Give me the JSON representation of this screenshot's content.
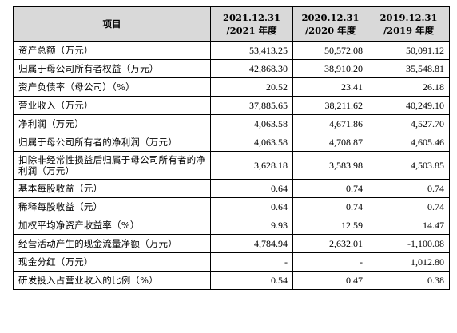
{
  "header": {
    "item": "项目",
    "col1_line1": "2021.12.31",
    "col1_line2": "/2021 年度",
    "col2_line1": "2020.12.31",
    "col2_line2": "/2020 年度",
    "col3_line1": "2019.12.31",
    "col3_line2": "/2019 年度"
  },
  "rows": [
    {
      "label": "资产总额（万元）",
      "v2021": "53,413.25",
      "v2020": "50,572.08",
      "v2019": "50,091.12"
    },
    {
      "label": "归属于母公司所有者权益（万元）",
      "v2021": "42,868.30",
      "v2020": "38,910.20",
      "v2019": "35,548.81"
    },
    {
      "label": "资产负债率（母公司）（%）",
      "v2021": "20.52",
      "v2020": "23.41",
      "v2019": "26.18"
    },
    {
      "label": "营业收入（万元）",
      "v2021": "37,885.65",
      "v2020": "38,211.62",
      "v2019": "40,249.10"
    },
    {
      "label": "净利润（万元）",
      "v2021": "4,063.58",
      "v2020": "4,671.86",
      "v2019": "4,527.70"
    },
    {
      "label": "归属于母公司所有者的净利润（万元）",
      "v2021": "4,063.58",
      "v2020": "4,708.87",
      "v2019": "4,605.46"
    },
    {
      "label": "扣除非经常性损益后归属于母公司所有者的净利润（万元）",
      "v2021": "3,628.18",
      "v2020": "3,583.98",
      "v2019": "4,503.85"
    },
    {
      "label": "基本每股收益（元）",
      "v2021": "0.64",
      "v2020": "0.74",
      "v2019": "0.74"
    },
    {
      "label": "稀释每股收益（元）",
      "v2021": "0.64",
      "v2020": "0.74",
      "v2019": "0.74"
    },
    {
      "label": "加权平均净资产收益率（%）",
      "v2021": "9.93",
      "v2020": "12.59",
      "v2019": "14.47"
    },
    {
      "label": "经营活动产生的现金流量净额（万元）",
      "v2021": "4,784.94",
      "v2020": "2,632.01",
      "v2019": "-1,100.08"
    },
    {
      "label": "现金分红（万元）",
      "v2021": "-",
      "v2020": "-",
      "v2019": "1,012.80"
    },
    {
      "label": "研发投入占营业收入的比例（%）",
      "v2021": "0.54",
      "v2020": "0.47",
      "v2019": "0.38"
    }
  ]
}
